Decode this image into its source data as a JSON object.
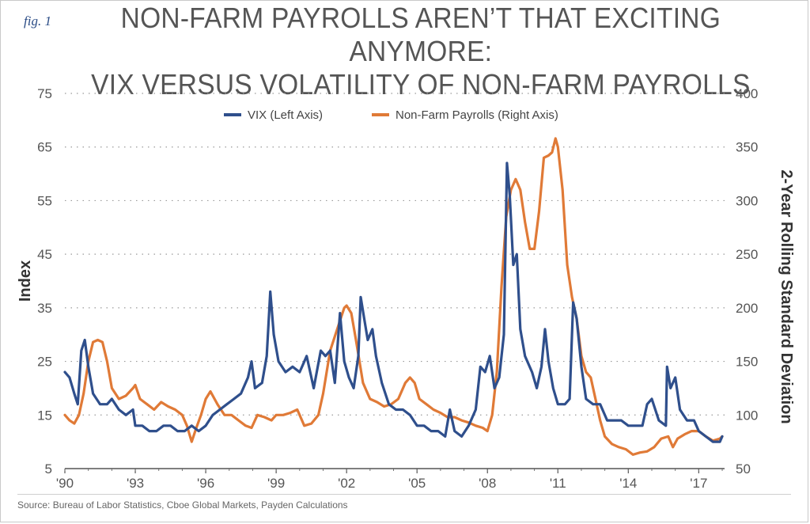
{
  "figure": {
    "fig_label": "fig. 1",
    "title_line1": "NON-FARM PAYROLLS AREN’T THAT EXCITING ANYMORE:",
    "title_line2": "VIX VERSUS VOLATILITY OF NON-FARM PAYROLLS",
    "source": "Source: Bureau of Labor Statistics, Cboe Global Markets, Payden Calculations"
  },
  "chart_data": {
    "type": "line",
    "ylabel_left": "Index",
    "ylabel_right": "2-Year Rolling Standard Deviation",
    "x_range": [
      1990.0,
      2018.1
    ],
    "x_ticks": [
      {
        "label": "'90",
        "value": 1990
      },
      {
        "label": "'93",
        "value": 1993
      },
      {
        "label": "'96",
        "value": 1996
      },
      {
        "label": "'99",
        "value": 1999
      },
      {
        "label": "'02",
        "value": 2002
      },
      {
        "label": "'05",
        "value": 2005
      },
      {
        "label": "'08",
        "value": 2008
      },
      {
        "label": "'11",
        "value": 2011
      },
      {
        "label": "'14",
        "value": 2014
      },
      {
        "label": "'17",
        "value": 2017
      }
    ],
    "y_left": {
      "min": 5,
      "max": 75,
      "ticks": [
        5,
        15,
        25,
        35,
        45,
        55,
        65,
        75
      ]
    },
    "y_right": {
      "min": 50,
      "max": 400,
      "ticks": [
        50,
        100,
        150,
        200,
        250,
        300,
        350,
        400
      ]
    },
    "grid": "horizontal dotted",
    "legend_position": "top-center",
    "series": [
      {
        "name": "VIX (Left Axis)",
        "axis": "left",
        "color": "#2f4f8c",
        "points": [
          [
            1990.0,
            23
          ],
          [
            1990.2,
            22
          ],
          [
            1990.4,
            19
          ],
          [
            1990.55,
            17
          ],
          [
            1990.7,
            27
          ],
          [
            1990.85,
            29
          ],
          [
            1991.0,
            24
          ],
          [
            1991.2,
            19
          ],
          [
            1991.5,
            17
          ],
          [
            1991.8,
            17
          ],
          [
            1992.0,
            18
          ],
          [
            1992.3,
            16
          ],
          [
            1992.6,
            15
          ],
          [
            1992.9,
            16
          ],
          [
            1993.0,
            13
          ],
          [
            1993.3,
            13
          ],
          [
            1993.6,
            12
          ],
          [
            1993.9,
            12
          ],
          [
            1994.2,
            13
          ],
          [
            1994.5,
            13
          ],
          [
            1994.8,
            12
          ],
          [
            1995.1,
            12
          ],
          [
            1995.4,
            13
          ],
          [
            1995.7,
            12
          ],
          [
            1996.0,
            13
          ],
          [
            1996.3,
            15
          ],
          [
            1996.6,
            16
          ],
          [
            1996.9,
            17
          ],
          [
            1997.2,
            18
          ],
          [
            1997.5,
            19
          ],
          [
            1997.8,
            22
          ],
          [
            1997.95,
            25
          ],
          [
            1998.1,
            20
          ],
          [
            1998.4,
            21
          ],
          [
            1998.6,
            26
          ],
          [
            1998.75,
            38
          ],
          [
            1998.9,
            30
          ],
          [
            1999.1,
            25
          ],
          [
            1999.4,
            23
          ],
          [
            1999.7,
            24
          ],
          [
            2000.0,
            23
          ],
          [
            2000.3,
            26
          ],
          [
            2000.6,
            20
          ],
          [
            2000.9,
            27
          ],
          [
            2001.1,
            26
          ],
          [
            2001.3,
            27
          ],
          [
            2001.5,
            21
          ],
          [
            2001.72,
            34
          ],
          [
            2001.9,
            25
          ],
          [
            2002.1,
            22
          ],
          [
            2002.3,
            20
          ],
          [
            2002.5,
            26
          ],
          [
            2002.6,
            37
          ],
          [
            2002.75,
            33
          ],
          [
            2002.9,
            29
          ],
          [
            2003.1,
            31
          ],
          [
            2003.25,
            26
          ],
          [
            2003.5,
            21
          ],
          [
            2003.8,
            17
          ],
          [
            2004.1,
            16
          ],
          [
            2004.4,
            16
          ],
          [
            2004.7,
            15
          ],
          [
            2005.0,
            13
          ],
          [
            2005.3,
            13
          ],
          [
            2005.6,
            12
          ],
          [
            2005.9,
            12
          ],
          [
            2006.2,
            11
          ],
          [
            2006.4,
            16
          ],
          [
            2006.6,
            12
          ],
          [
            2006.9,
            11
          ],
          [
            2007.2,
            13
          ],
          [
            2007.5,
            16
          ],
          [
            2007.7,
            24
          ],
          [
            2007.9,
            23
          ],
          [
            2008.1,
            26
          ],
          [
            2008.3,
            20
          ],
          [
            2008.5,
            22
          ],
          [
            2008.7,
            30
          ],
          [
            2008.83,
            62
          ],
          [
            2008.95,
            56
          ],
          [
            2009.1,
            43
          ],
          [
            2009.25,
            45
          ],
          [
            2009.4,
            31
          ],
          [
            2009.6,
            26
          ],
          [
            2009.9,
            23
          ],
          [
            2010.1,
            20
          ],
          [
            2010.3,
            24
          ],
          [
            2010.45,
            31
          ],
          [
            2010.6,
            25
          ],
          [
            2010.8,
            20
          ],
          [
            2011.0,
            17
          ],
          [
            2011.3,
            17
          ],
          [
            2011.5,
            18
          ],
          [
            2011.65,
            36
          ],
          [
            2011.8,
            33
          ],
          [
            2012.0,
            24
          ],
          [
            2012.2,
            18
          ],
          [
            2012.5,
            17
          ],
          [
            2012.8,
            17
          ],
          [
            2013.1,
            14
          ],
          [
            2013.4,
            14
          ],
          [
            2013.7,
            14
          ],
          [
            2014.0,
            13
          ],
          [
            2014.3,
            13
          ],
          [
            2014.6,
            13
          ],
          [
            2014.8,
            17
          ],
          [
            2015.0,
            18
          ],
          [
            2015.3,
            14
          ],
          [
            2015.6,
            13
          ],
          [
            2015.65,
            24
          ],
          [
            2015.8,
            20
          ],
          [
            2016.0,
            22
          ],
          [
            2016.2,
            16
          ],
          [
            2016.5,
            14
          ],
          [
            2016.8,
            14
          ],
          [
            2017.0,
            12
          ],
          [
            2017.3,
            11
          ],
          [
            2017.6,
            10
          ],
          [
            2017.9,
            10
          ],
          [
            2018.0,
            11
          ]
        ]
      },
      {
        "name": "Non-Farm Payrolls (Right Axis)",
        "axis": "right",
        "color": "#e07a37",
        "points": [
          [
            1990.0,
            100
          ],
          [
            1990.2,
            95
          ],
          [
            1990.4,
            92
          ],
          [
            1990.6,
            100
          ],
          [
            1990.8,
            120
          ],
          [
            1991.0,
            150
          ],
          [
            1991.2,
            168
          ],
          [
            1991.4,
            170
          ],
          [
            1991.6,
            168
          ],
          [
            1991.8,
            150
          ],
          [
            1992.0,
            125
          ],
          [
            1992.3,
            115
          ],
          [
            1992.6,
            118
          ],
          [
            1992.9,
            125
          ],
          [
            1993.0,
            128
          ],
          [
            1993.2,
            115
          ],
          [
            1993.5,
            110
          ],
          [
            1993.8,
            105
          ],
          [
            1994.1,
            112
          ],
          [
            1994.4,
            108
          ],
          [
            1994.7,
            105
          ],
          [
            1995.0,
            100
          ],
          [
            1995.2,
            90
          ],
          [
            1995.4,
            75
          ],
          [
            1995.6,
            88
          ],
          [
            1995.8,
            100
          ],
          [
            1996.0,
            115
          ],
          [
            1996.2,
            122
          ],
          [
            1996.5,
            110
          ],
          [
            1996.8,
            100
          ],
          [
            1997.1,
            100
          ],
          [
            1997.4,
            95
          ],
          [
            1997.7,
            90
          ],
          [
            1997.95,
            88
          ],
          [
            1998.2,
            100
          ],
          [
            1998.5,
            98
          ],
          [
            1998.8,
            95
          ],
          [
            1999.0,
            100
          ],
          [
            1999.3,
            100
          ],
          [
            1999.6,
            102
          ],
          [
            1999.9,
            105
          ],
          [
            2000.0,
            100
          ],
          [
            2000.2,
            90
          ],
          [
            2000.5,
            92
          ],
          [
            2000.8,
            100
          ],
          [
            2001.0,
            120
          ],
          [
            2001.3,
            160
          ],
          [
            2001.6,
            180
          ],
          [
            2001.9,
            200
          ],
          [
            2002.0,
            202
          ],
          [
            2002.2,
            195
          ],
          [
            2002.4,
            170
          ],
          [
            2002.7,
            130
          ],
          [
            2003.0,
            115
          ],
          [
            2003.3,
            112
          ],
          [
            2003.6,
            108
          ],
          [
            2003.9,
            110
          ],
          [
            2004.2,
            115
          ],
          [
            2004.5,
            130
          ],
          [
            2004.7,
            135
          ],
          [
            2004.9,
            130
          ],
          [
            2005.1,
            115
          ],
          [
            2005.4,
            110
          ],
          [
            2005.7,
            105
          ],
          [
            2006.0,
            102
          ],
          [
            2006.3,
            98
          ],
          [
            2006.6,
            98
          ],
          [
            2006.9,
            95
          ],
          [
            2007.2,
            93
          ],
          [
            2007.5,
            90
          ],
          [
            2007.8,
            88
          ],
          [
            2008.0,
            85
          ],
          [
            2008.2,
            100
          ],
          [
            2008.4,
            140
          ],
          [
            2008.6,
            220
          ],
          [
            2008.8,
            285
          ],
          [
            2009.0,
            310
          ],
          [
            2009.2,
            320
          ],
          [
            2009.4,
            310
          ],
          [
            2009.6,
            280
          ],
          [
            2009.8,
            255
          ],
          [
            2010.0,
            255
          ],
          [
            2010.2,
            290
          ],
          [
            2010.4,
            340
          ],
          [
            2010.6,
            342
          ],
          [
            2010.75,
            345
          ],
          [
            2010.9,
            358
          ],
          [
            2011.0,
            350
          ],
          [
            2011.2,
            310
          ],
          [
            2011.4,
            240
          ],
          [
            2011.6,
            210
          ],
          [
            2011.8,
            190
          ],
          [
            2012.0,
            155
          ],
          [
            2012.2,
            140
          ],
          [
            2012.4,
            135
          ],
          [
            2012.6,
            115
          ],
          [
            2012.8,
            95
          ],
          [
            2013.0,
            80
          ],
          [
            2013.3,
            73
          ],
          [
            2013.6,
            70
          ],
          [
            2013.9,
            68
          ],
          [
            2014.2,
            63
          ],
          [
            2014.5,
            65
          ],
          [
            2014.8,
            66
          ],
          [
            2015.1,
            70
          ],
          [
            2015.4,
            78
          ],
          [
            2015.7,
            80
          ],
          [
            2015.9,
            70
          ],
          [
            2016.1,
            78
          ],
          [
            2016.4,
            82
          ],
          [
            2016.7,
            85
          ],
          [
            2017.0,
            85
          ],
          [
            2017.3,
            80
          ],
          [
            2017.6,
            76
          ],
          [
            2017.9,
            78
          ],
          [
            2018.0,
            80
          ]
        ]
      }
    ]
  }
}
